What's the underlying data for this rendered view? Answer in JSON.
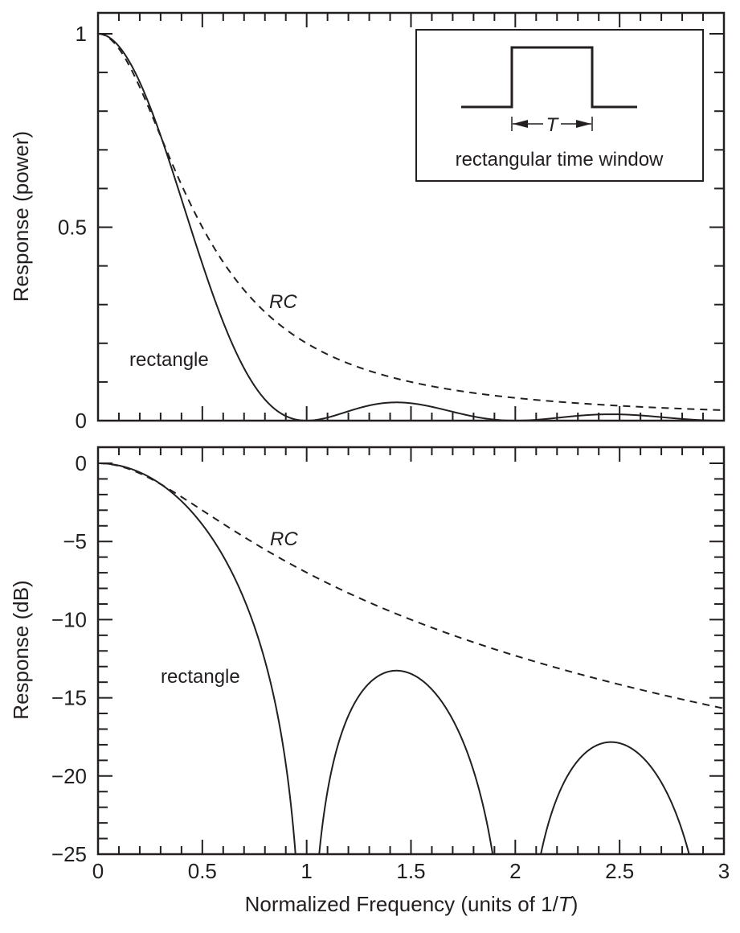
{
  "colors": {
    "ink": "#231f20",
    "background": "#ffffff"
  },
  "chart_data": [
    {
      "type": "line",
      "panel": "top",
      "xlabel": "",
      "ylabel": "Response (power)",
      "xlim": [
        0,
        3
      ],
      "ylim": [
        0,
        1.05
      ],
      "x_major_ticks": [
        0,
        0.5,
        1,
        1.5,
        2,
        2.5,
        3
      ],
      "x_minor_step": 0.1,
      "y_major_ticks": [
        0,
        0.5,
        1
      ],
      "y_tick_labels": [
        "0",
        "0.5",
        "1"
      ],
      "y_minor_step": 0.1,
      "grid": false,
      "series": [
        {
          "name": "rectangle",
          "style": "solid",
          "formula": "sinc^2(f) = (sin(pi f)/(pi f))^2",
          "x": [
            0,
            0.1,
            0.2,
            0.3,
            0.4,
            0.5,
            0.6,
            0.7,
            0.8,
            0.9,
            1.0,
            1.2,
            1.43,
            1.6,
            1.8,
            2.0,
            2.2,
            2.46,
            2.7,
            3.0
          ],
          "values": [
            1.0,
            0.968,
            0.875,
            0.737,
            0.573,
            0.405,
            0.255,
            0.137,
            0.057,
            0.012,
            0.0,
            0.032,
            0.047,
            0.035,
            0.009,
            0.0,
            0.008,
            0.016,
            0.009,
            0.0
          ]
        },
        {
          "name": "RC",
          "style": "dashed",
          "formula": "1/(1+(f/0.5)^2)",
          "x": [
            0,
            0.1,
            0.2,
            0.3,
            0.4,
            0.5,
            0.6,
            0.7,
            0.8,
            0.9,
            1.0,
            1.5,
            2.0,
            2.5,
            3.0
          ],
          "values": [
            1.0,
            0.962,
            0.862,
            0.735,
            0.61,
            0.5,
            0.41,
            0.338,
            0.281,
            0.236,
            0.2,
            0.1,
            0.059,
            0.038,
            0.027
          ]
        }
      ],
      "annotations": [
        {
          "text": "RC",
          "italic": true,
          "near_x": 0.95,
          "near_y": 0.31
        },
        {
          "text": "rectangle",
          "italic": false,
          "near_x": 0.45,
          "near_y": 0.16
        }
      ],
      "inset": {
        "caption": "rectangular time window",
        "width_label": "T"
      }
    },
    {
      "type": "line",
      "panel": "bottom",
      "xlabel": "Normalized Frequency (units of 1/T)",
      "xlabel_parts": [
        "Normalized Frequency (units of 1/",
        "T",
        ")"
      ],
      "ylabel": "Response (dB)",
      "xlim": [
        0,
        3
      ],
      "ylim": [
        -25,
        1
      ],
      "x_major_ticks": [
        0,
        0.5,
        1,
        1.5,
        2,
        2.5,
        3
      ],
      "x_tick_labels": [
        "0",
        "0.5",
        "1",
        "1.5",
        "2",
        "2.5",
        "3"
      ],
      "x_minor_step": 0.1,
      "y_major_ticks": [
        0,
        -5,
        -10,
        -15,
        -20,
        -25
      ],
      "y_tick_labels": [
        "0",
        "−5",
        "−10",
        "−15",
        "−20",
        "−25"
      ],
      "y_minor_step": 1,
      "grid": false,
      "series": [
        {
          "name": "rectangle",
          "style": "solid",
          "formula": "10*log10(sinc^2(f))",
          "x": [
            0,
            0.2,
            0.4,
            0.6,
            0.8,
            0.9,
            0.95,
            1.05,
            1.2,
            1.43,
            1.7,
            1.9,
            2.12,
            2.3,
            2.46,
            2.7,
            2.85
          ],
          "values": [
            0,
            -0.58,
            -2.42,
            -5.93,
            -12.4,
            -19.1,
            -25.0,
            -25.0,
            -14.9,
            -13.3,
            -16.9,
            -25.0,
            -25.0,
            -18.6,
            -17.9,
            -20.5,
            -25.0
          ]
        },
        {
          "name": "RC",
          "style": "dashed",
          "formula": "10*log10(1/(1+(f/0.5)^2))",
          "x": [
            0,
            0.2,
            0.4,
            0.6,
            0.8,
            1.0,
            1.5,
            2.0,
            2.5,
            3.0
          ],
          "values": [
            0,
            -0.64,
            -2.15,
            -3.87,
            -5.51,
            -6.99,
            -10.0,
            -12.3,
            -14.15,
            -15.68
          ]
        }
      ],
      "annotations": [
        {
          "text": "RC",
          "italic": true,
          "near_x": 0.85,
          "near_y": -4.8
        },
        {
          "text": "rectangle",
          "italic": false,
          "near_x": 0.45,
          "near_y": -14
        }
      ]
    }
  ]
}
